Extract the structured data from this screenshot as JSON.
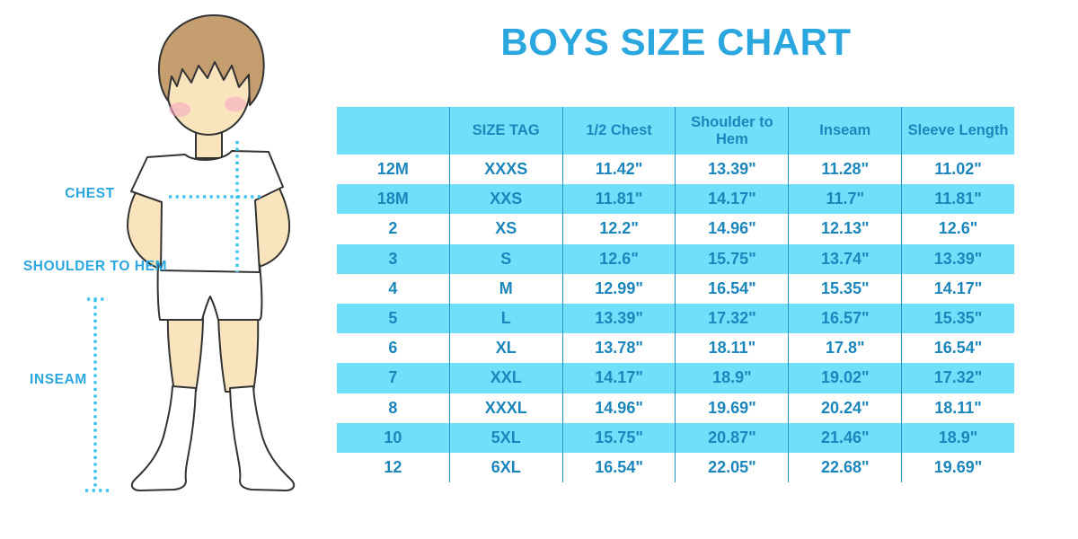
{
  "title": "BOYS SIZE CHART",
  "colors": {
    "title_blue": "#2BA7E0",
    "band_blue": "#70E0FA",
    "table_text": "#1B86BC",
    "divider": "#2193C6",
    "dotted_line": "#3BC0EF",
    "skin": "#F9E4BD",
    "hair": "#C49E6E",
    "blush": "#F2A9BC",
    "outline": "#333333",
    "page_bg": "#FFFFFF"
  },
  "diagram": {
    "labels": {
      "chest": "CHEST",
      "shoulder_to_hem": "SHOULDER TO HEM",
      "inseam": "INSEAM"
    }
  },
  "chart_data": {
    "type": "table",
    "title": "BOYS SIZE CHART",
    "columns": [
      "",
      "SIZE TAG",
      "1/2 Chest",
      "Shoulder to Hem",
      "Inseam",
      "Sleeve Length"
    ],
    "rows": [
      [
        "12M",
        "XXXS",
        "11.42\"",
        "13.39\"",
        "11.28\"",
        "11.02\""
      ],
      [
        "18M",
        "XXS",
        "11.81\"",
        "14.17\"",
        "11.7\"",
        "11.81\""
      ],
      [
        "2",
        "XS",
        "12.2\"",
        "14.96\"",
        "12.13\"",
        "12.6\""
      ],
      [
        "3",
        "S",
        "12.6\"",
        "15.75\"",
        "13.74\"",
        "13.39\""
      ],
      [
        "4",
        "M",
        "12.99\"",
        "16.54\"",
        "15.35\"",
        "14.17\""
      ],
      [
        "5",
        "L",
        "13.39\"",
        "17.32\"",
        "16.57\"",
        "15.35\""
      ],
      [
        "6",
        "XL",
        "13.78\"",
        "18.11\"",
        "17.8\"",
        "16.54\""
      ],
      [
        "7",
        "XXL",
        "14.17\"",
        "18.9\"",
        "19.02\"",
        "17.32\""
      ],
      [
        "8",
        "XXXL",
        "14.96\"",
        "19.69\"",
        "20.24\"",
        "18.11\""
      ],
      [
        "10",
        "5XL",
        "15.75\"",
        "20.87\"",
        "21.46\"",
        "18.9\""
      ],
      [
        "12",
        "6XL",
        "16.54\"",
        "22.05\"",
        "22.68\"",
        "19.69\""
      ]
    ],
    "banded_row_indices": [
      1,
      3,
      5,
      7,
      9
    ],
    "layout": {
      "header_fill": "band_blue",
      "alternating_rows": true,
      "vertical_dividers": true
    }
  }
}
